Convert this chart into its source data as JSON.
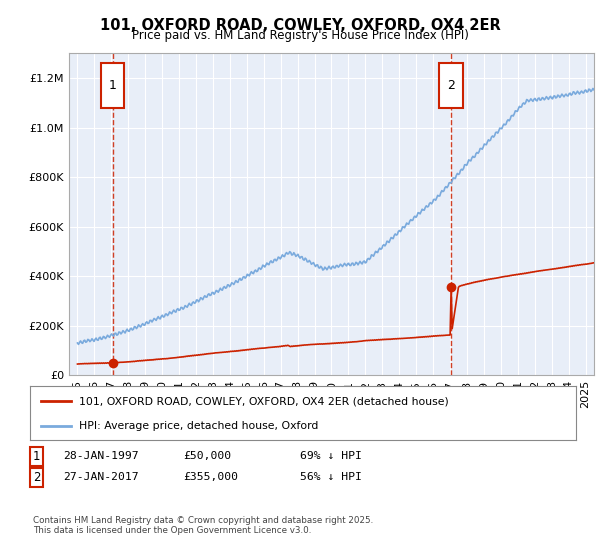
{
  "title": "101, OXFORD ROAD, COWLEY, OXFORD, OX4 2ER",
  "subtitle": "Price paid vs. HM Land Registry's House Price Index (HPI)",
  "background_color": "#e8eef8",
  "plot_bg_color": "#e8eef8",
  "hpi_line_color": "#7aaadd",
  "price_line_color": "#cc2200",
  "marker_color": "#cc2200",
  "dashed_line_color": "#cc2200",
  "sale1_date": 1997.07,
  "sale1_price": 50000,
  "sale2_date": 2017.07,
  "sale2_price": 355000,
  "annotation1_label": "1",
  "annotation2_label": "2",
  "legend_label1": "101, OXFORD ROAD, COWLEY, OXFORD, OX4 2ER (detached house)",
  "legend_label2": "HPI: Average price, detached house, Oxford",
  "footer": "Contains HM Land Registry data © Crown copyright and database right 2025.\nThis data is licensed under the Open Government Licence v3.0.",
  "ylim": [
    0,
    1300000
  ],
  "xlim_start": 1994.5,
  "xlim_end": 2025.5,
  "yticks": [
    0,
    200000,
    400000,
    600000,
    800000,
    1000000,
    1200000
  ]
}
